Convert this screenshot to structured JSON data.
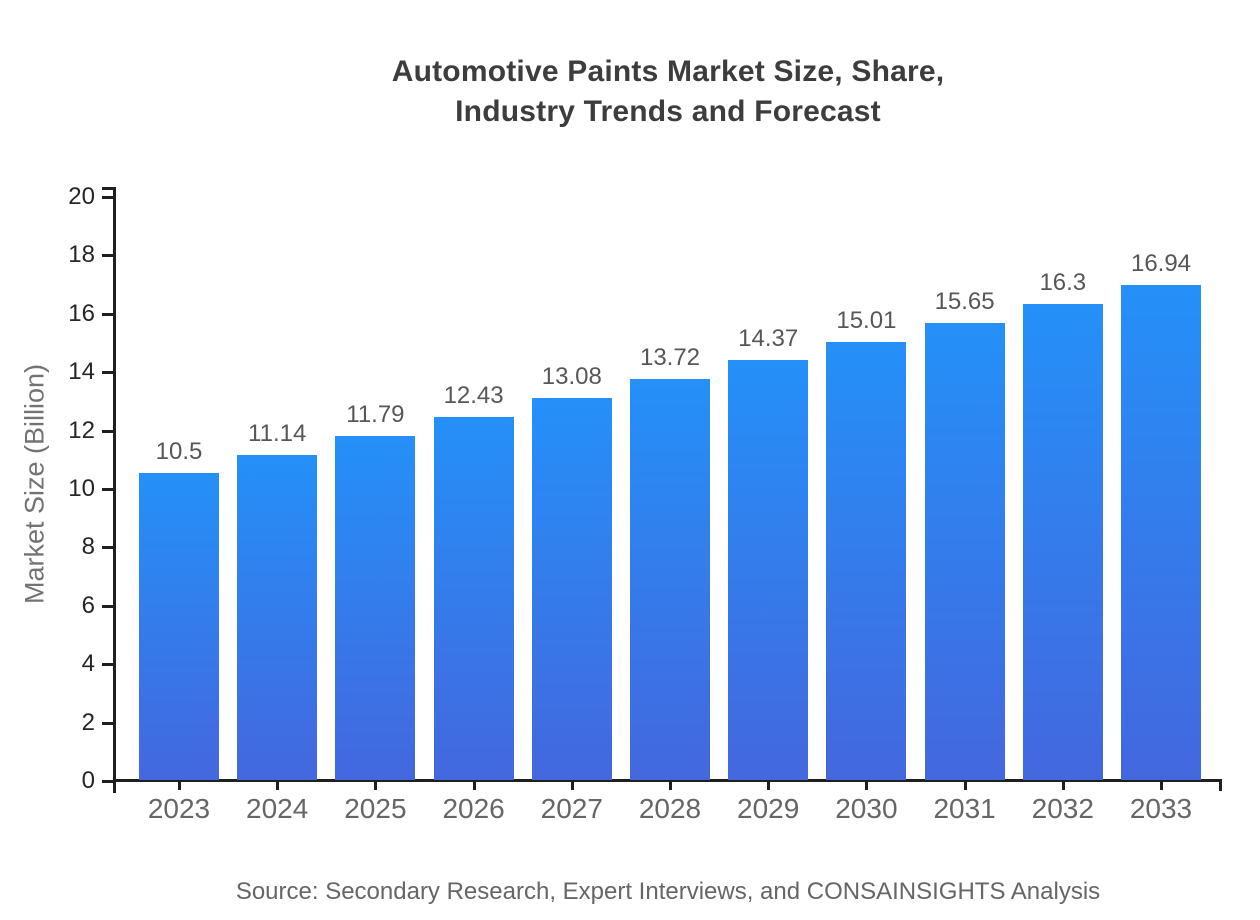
{
  "chart_data": {
    "type": "bar",
    "title_lines": [
      "Automotive Paints Market Size, Share,",
      "Industry Trends and Forecast"
    ],
    "title": "Automotive Paints Market Size, Share, Industry Trends and Forecast",
    "xlabel": "",
    "ylabel": "Market Size (Billion)",
    "categories": [
      "2023",
      "2024",
      "2025",
      "2026",
      "2027",
      "2028",
      "2029",
      "2030",
      "2031",
      "2032",
      "2033"
    ],
    "values": [
      10.5,
      11.14,
      11.79,
      12.43,
      13.08,
      13.72,
      14.37,
      15.01,
      15.65,
      16.3,
      16.94
    ],
    "value_labels": [
      "10.5",
      "11.14",
      "11.79",
      "12.43",
      "13.08",
      "13.72",
      "14.37",
      "15.01",
      "15.65",
      "16.3",
      "16.94"
    ],
    "ylim": [
      0,
      20
    ],
    "yticks": [
      0,
      2,
      4,
      6,
      8,
      10,
      12,
      14,
      16,
      18,
      20
    ],
    "grid": false,
    "legend_position": "none",
    "source": "Source: Secondary Research, Expert Interviews, and CONSAINSIGHTS Analysis"
  },
  "colors": {
    "background": "#ffffff",
    "title": "#3d3d3d",
    "axis": "#1f1f1f",
    "ytick_label": "#262626",
    "xtick_label": "#666666",
    "value_label": "#575757",
    "ylabel": "#737373",
    "source": "#666666",
    "bar_gradient_top": "#2590F8",
    "bar_gradient_bottom": "#4467DE"
  }
}
